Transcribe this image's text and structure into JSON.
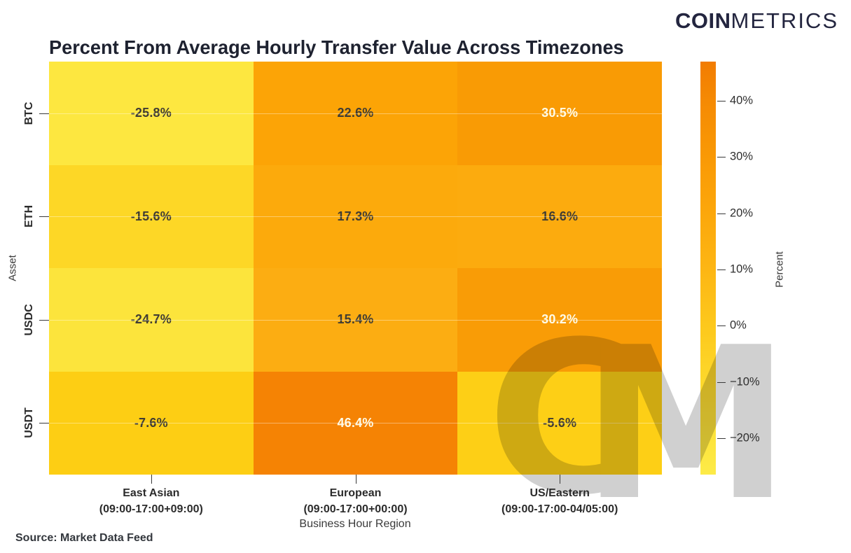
{
  "brand": {
    "logo_bold": "COIN",
    "logo_light": "METRICS",
    "color": "#23253F"
  },
  "source_note": "Source: Market Data Feed",
  "chart_data": {
    "type": "heatmap",
    "title": "Percent From Average Hourly Transfer Value Across Timezones",
    "xlabel": "Business Hour Region",
    "ylabel": "Asset",
    "colorbar_label": "Percent",
    "watermark": "CM",
    "x_categories": [
      {
        "label": "East Asian",
        "sublabel": "(09:00-17:00+09:00)"
      },
      {
        "label": "European",
        "sublabel": "(09:00-17:00+00:00)"
      },
      {
        "label": "US/Eastern",
        "sublabel": "(09:00-17:00-04/05:00)"
      }
    ],
    "y_categories": [
      "BTC",
      "ETH",
      "USDC",
      "USDT"
    ],
    "values": [
      [
        -25.8,
        22.6,
        30.5
      ],
      [
        -15.6,
        17.3,
        16.6
      ],
      [
        -24.7,
        15.4,
        30.2
      ],
      [
        -7.6,
        46.4,
        -5.6
      ]
    ],
    "cell_labels": [
      [
        "-25.8%",
        "22.6%",
        "30.5%"
      ],
      [
        "-15.6%",
        "17.3%",
        "16.6%"
      ],
      [
        "-24.7%",
        "15.4%",
        "30.2%"
      ],
      [
        "-7.6%",
        "46.4%",
        "-5.6%"
      ]
    ],
    "cell_colors": [
      [
        "#FDE740",
        "#FCA406",
        "#F99B05"
      ],
      [
        "#FDD726",
        "#FCAA0C",
        "#FCAB0E"
      ],
      [
        "#FCE43C",
        "#FCAD12",
        "#F99C06"
      ],
      [
        "#FDCE14",
        "#F58304",
        "#FDCF16"
      ]
    ],
    "cell_text_colors": [
      [
        "dark",
        "dark",
        "light"
      ],
      [
        "dark",
        "dark",
        "dark"
      ],
      [
        "dark",
        "dark",
        "light"
      ],
      [
        "dark",
        "light",
        "dark"
      ]
    ],
    "colorbar": {
      "vmin": -26.5,
      "vmax": 47,
      "ticks": [
        {
          "value": 40,
          "label": "40%"
        },
        {
          "value": 30,
          "label": "30%"
        },
        {
          "value": 20,
          "label": "20%"
        },
        {
          "value": 10,
          "label": "10%"
        },
        {
          "value": 0,
          "label": "0%"
        },
        {
          "value": -10,
          "label": "−10%"
        },
        {
          "value": -20,
          "label": "−20%"
        }
      ],
      "gradient": [
        {
          "value": 47,
          "color": "#F27C01"
        },
        {
          "value": 40,
          "color": "#F58A03"
        },
        {
          "value": 30,
          "color": "#F99905"
        },
        {
          "value": 20,
          "color": "#FCA70B"
        },
        {
          "value": 10,
          "color": "#FDB614"
        },
        {
          "value": 0,
          "color": "#FDC81C"
        },
        {
          "value": -10,
          "color": "#FDD82C"
        },
        {
          "value": -20,
          "color": "#FDE43C"
        },
        {
          "value": -26.5,
          "color": "#FDEB48"
        }
      ]
    }
  }
}
